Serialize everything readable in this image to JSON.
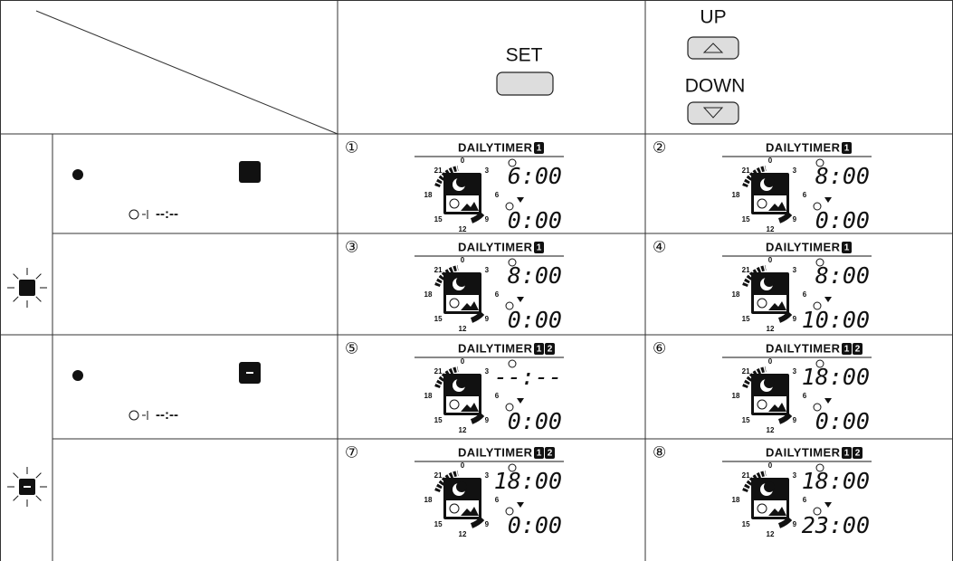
{
  "header": {
    "set_label": "SET",
    "up_label": "UP",
    "down_label": "DOWN"
  },
  "dial_labels": [
    "0",
    "3",
    "6",
    "9",
    "12",
    "15",
    "18",
    "21"
  ],
  "left_rows": [
    {
      "placeholder": "--:--"
    },
    {
      "placeholder": "--:--"
    }
  ],
  "steps": [
    {
      "marker": "①",
      "title": "DAILYTIMER",
      "badges": [
        "1"
      ],
      "on_time": "6:00",
      "off_time": "0:00"
    },
    {
      "marker": "②",
      "title": "DAILYTIMER",
      "badges": [
        "1"
      ],
      "on_time": "8:00",
      "off_time": "0:00"
    },
    {
      "marker": "③",
      "title": "DAILYTIMER",
      "badges": [
        "1"
      ],
      "on_time": "8:00",
      "off_time": "0:00"
    },
    {
      "marker": "④",
      "title": "DAILYTIMER",
      "badges": [
        "1"
      ],
      "on_time": "8:00",
      "off_time": "10:00"
    },
    {
      "marker": "⑤",
      "title": "DAILYTIMER",
      "badges": [
        "1",
        "2"
      ],
      "on_time": "--:--",
      "off_time": "0:00"
    },
    {
      "marker": "⑥",
      "title": "DAILYTIMER",
      "badges": [
        "1",
        "2"
      ],
      "on_time": "18:00",
      "off_time": "0:00"
    },
    {
      "marker": "⑦",
      "title": "DAILYTIMER",
      "badges": [
        "1",
        "2"
      ],
      "on_time": "18:00",
      "off_time": "0:00"
    },
    {
      "marker": "⑧",
      "title": "DAILYTIMER",
      "badges": [
        "1",
        "2"
      ],
      "on_time": "18:00",
      "off_time": "23:00"
    }
  ]
}
